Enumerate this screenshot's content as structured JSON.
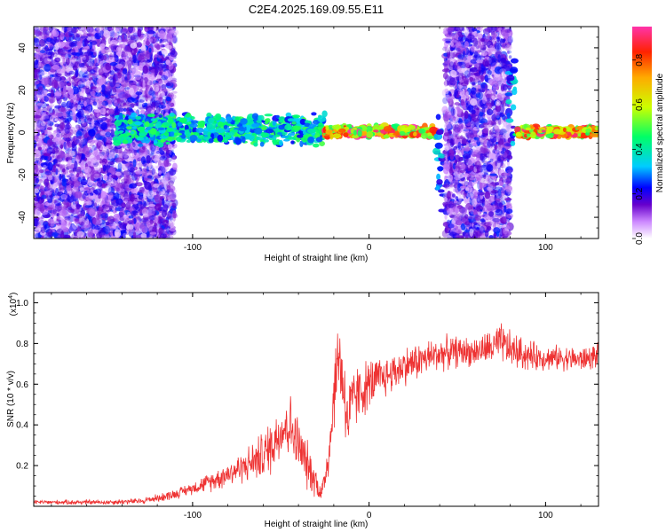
{
  "page_title": "C2E4.2025.169.09.55.E11",
  "chart_data": [
    {
      "type": "heatmap",
      "title": "C2E4.2025.169.09.55.E11",
      "xlabel": "Height of straight line (km)",
      "ylabel": "Frequency (Hz)",
      "xlim": [
        -190,
        130
      ],
      "ylim": [
        -50,
        50
      ],
      "x_ticks": [
        -100,
        0,
        100
      ],
      "y_ticks": [
        -40,
        -20,
        0,
        20,
        40
      ],
      "colorbar": {
        "label": "Normalized spectral amplitude",
        "range": [
          0.0,
          0.95
        ],
        "ticks": [
          0.0,
          0.2,
          0.4,
          0.6,
          0.8
        ],
        "tick_labels": [
          "0.0",
          "0.2",
          "0.4",
          "0.6",
          "0.8"
        ]
      },
      "regions": [
        {
          "name": "diffuse low-amplitude noise",
          "x_range": [
            -190,
            -110
          ],
          "y_range": [
            -50,
            50
          ],
          "level": 0.1
        },
        {
          "name": "signal band",
          "x_range": [
            -143,
            -25
          ],
          "y_range": [
            -5,
            8
          ],
          "level": 0.4
        },
        {
          "name": "signal trace",
          "x_range": [
            -25,
            38
          ],
          "y_range": [
            -2,
            3
          ],
          "level": 0.8
        },
        {
          "name": "broadband spike",
          "x_range": [
            38,
            42
          ],
          "y_range": [
            -35,
            10
          ],
          "level": 0.3
        },
        {
          "name": "diffuse noise block",
          "x_range": [
            43,
            80
          ],
          "y_range": [
            -50,
            50
          ],
          "level": 0.1
        },
        {
          "name": "broadband spike",
          "x_range": [
            79,
            83
          ],
          "y_range": [
            -8,
            32
          ],
          "level": 0.3
        },
        {
          "name": "signal trace",
          "x_range": [
            83,
            130
          ],
          "y_range": [
            -2,
            3
          ],
          "level": 0.75
        }
      ]
    },
    {
      "type": "line",
      "xlabel": "Height of straight line (km)",
      "ylabel": "SNR (10 * v/v)",
      "y_multiplier": "(x10",
      "y_multiplier_exp": "4",
      "y_multiplier_close": ")",
      "xlim": [
        -190,
        130
      ],
      "ylim": [
        0.0,
        1.05
      ],
      "x_ticks": [
        -100,
        0,
        100
      ],
      "y_ticks": [
        0.2,
        0.4,
        0.6,
        0.8,
        1.0
      ],
      "series": [
        {
          "color": "#ee3333",
          "points": [
            [
              -190,
              0.02
            ],
            [
              -170,
              0.02
            ],
            [
              -150,
              0.02
            ],
            [
              -130,
              0.025
            ],
            [
              -120,
              0.04
            ],
            [
              -110,
              0.06
            ],
            [
              -100,
              0.09
            ],
            [
              -90,
              0.12
            ],
            [
              -80,
              0.16
            ],
            [
              -70,
              0.2
            ],
            [
              -60,
              0.25
            ],
            [
              -55,
              0.3
            ],
            [
              -50,
              0.38
            ],
            [
              -45,
              0.4
            ],
            [
              -40,
              0.3
            ],
            [
              -35,
              0.2
            ],
            [
              -30,
              0.12
            ],
            [
              -27,
              0.06
            ],
            [
              -25,
              0.14
            ],
            [
              -22,
              0.32
            ],
            [
              -20,
              0.55
            ],
            [
              -17,
              0.76
            ],
            [
              -12,
              0.42
            ],
            [
              -8,
              0.54
            ],
            [
              -5,
              0.56
            ],
            [
              0,
              0.6
            ],
            [
              10,
              0.64
            ],
            [
              20,
              0.69
            ],
            [
              30,
              0.72
            ],
            [
              40,
              0.75
            ],
            [
              50,
              0.76
            ],
            [
              60,
              0.76
            ],
            [
              70,
              0.78
            ],
            [
              75,
              0.8
            ],
            [
              80,
              0.77
            ],
            [
              90,
              0.74
            ],
            [
              100,
              0.73
            ],
            [
              110,
              0.73
            ],
            [
              120,
              0.72
            ],
            [
              130,
              0.74
            ]
          ],
          "noise": [
            [
              -190,
              0.01
            ],
            [
              -130,
              0.015
            ],
            [
              -100,
              0.03
            ],
            [
              -70,
              0.08
            ],
            [
              -55,
              0.14
            ],
            [
              -45,
              0.16
            ],
            [
              -35,
              0.12
            ],
            [
              -27,
              0.05
            ],
            [
              -20,
              0.18
            ],
            [
              -15,
              0.22
            ],
            [
              -5,
              0.14
            ],
            [
              10,
              0.1
            ],
            [
              30,
              0.09
            ],
            [
              60,
              0.07
            ],
            [
              75,
              0.1
            ],
            [
              100,
              0.06
            ],
            [
              130,
              0.06
            ]
          ]
        }
      ]
    }
  ]
}
